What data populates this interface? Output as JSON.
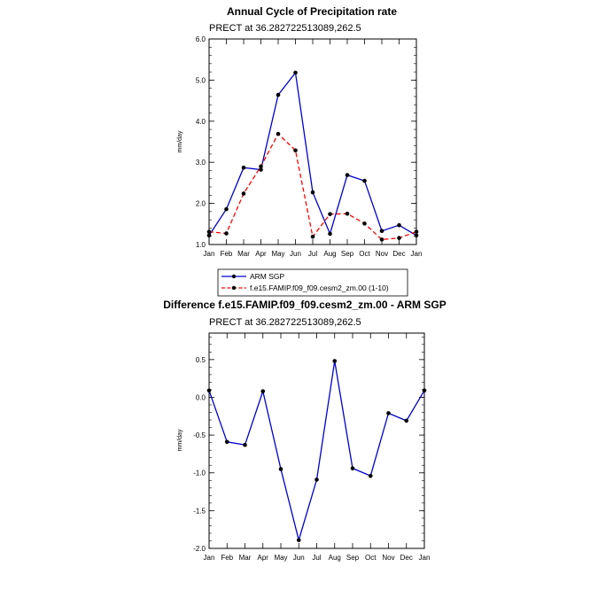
{
  "chart_data": [
    {
      "type": "line",
      "title": "Annual Cycle of Precipitation rate",
      "subtitle": "PRECT at 36.282722513089,262.5",
      "ylabel": "mm/day",
      "xlabel": "",
      "ylim": [
        1.0,
        6.0
      ],
      "yticks": [
        "1.0",
        "2.0",
        "3.0",
        "4.0",
        "5.0",
        "6.0"
      ],
      "yticks_values": [
        1,
        2,
        3,
        4,
        5,
        6
      ],
      "categories": [
        "Jan",
        "Feb",
        "Mar",
        "Apr",
        "May",
        "Jun",
        "Jul",
        "Aug",
        "Sep",
        "Oct",
        "Nov",
        "Dec",
        "Jan"
      ],
      "series": [
        {
          "name": "ARM SGP",
          "color": "#0000cc",
          "style": "solid",
          "values": [
            1.22,
            1.86,
            2.87,
            2.82,
            4.64,
            5.18,
            2.27,
            1.26,
            2.69,
            2.55,
            1.33,
            1.47,
            1.22
          ]
        },
        {
          "name": "f.e15.FAMIP.f09_f09.cesm2_zm.00 (1-10)",
          "color": "#ff0000",
          "style": "dashed",
          "values": [
            1.31,
            1.27,
            2.24,
            2.9,
            3.69,
            3.29,
            1.19,
            1.74,
            1.75,
            1.51,
            1.12,
            1.16,
            1.31
          ]
        }
      ],
      "legend_position": "below"
    },
    {
      "type": "line",
      "title": "Difference f.e15.FAMIP.f09_f09.cesm2_zm.00 - ARM SGP",
      "subtitle": "PRECT at 36.282722513089,262.5",
      "ylabel": "mm/day",
      "xlabel": "",
      "ylim": [
        -2.0,
        0.85
      ],
      "yticks": [
        "-2.0",
        "-1.5",
        "-1.0",
        "-0.5",
        "0.0",
        "0.5"
      ],
      "yticks_values": [
        -2.0,
        -1.5,
        -1.0,
        -0.5,
        0.0,
        0.5
      ],
      "categories": [
        "Jan",
        "Feb",
        "Mar",
        "Apr",
        "May",
        "Jun",
        "Jul",
        "Aug",
        "Sep",
        "Oct",
        "Nov",
        "Dec",
        "Jan"
      ],
      "series": [
        {
          "color": "#0000cc",
          "style": "solid",
          "values": [
            0.09,
            -0.59,
            -0.63,
            0.08,
            -0.95,
            -1.89,
            -1.09,
            0.48,
            -0.94,
            -1.04,
            -0.21,
            -0.31,
            0.09
          ]
        }
      ]
    }
  ]
}
